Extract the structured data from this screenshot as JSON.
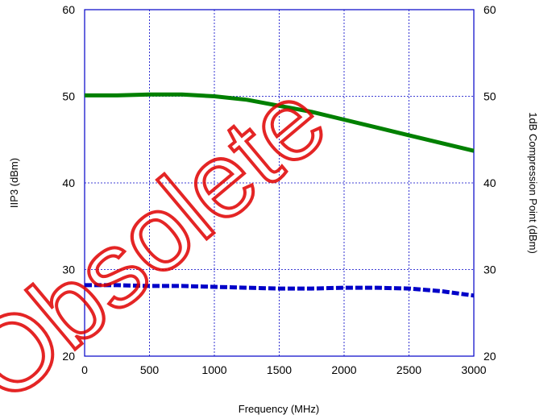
{
  "chart_data": {
    "type": "line",
    "title": "",
    "xlabel": "Frequency (MHz)",
    "ylabel": "IIP3 (dBm)",
    "y2label": "1dB Compression Point (dBm)",
    "xlim": [
      0,
      3000
    ],
    "ylim": [
      20,
      60
    ],
    "y2lim": [
      20,
      60
    ],
    "xticks": [
      0,
      500,
      1000,
      1500,
      2000,
      2500,
      3000
    ],
    "yticks": [
      20,
      30,
      40,
      50,
      60
    ],
    "y2ticks": [
      20,
      30,
      40,
      50,
      60
    ],
    "grid": true,
    "series": [
      {
        "axis": "left",
        "color": "#008000",
        "style": "solid",
        "x": [
          0,
          250,
          500,
          750,
          1000,
          1250,
          1500,
          1750,
          2000,
          2250,
          2500,
          2750,
          3000
        ],
        "y": [
          50.1,
          50.1,
          50.2,
          50.2,
          50.0,
          49.6,
          48.9,
          48.2,
          47.3,
          46.4,
          45.5,
          44.6,
          43.7
        ]
      },
      {
        "axis": "right",
        "color": "#0000c8",
        "style": "dashed",
        "x": [
          0,
          250,
          500,
          750,
          1000,
          1250,
          1500,
          1750,
          2000,
          2250,
          2500,
          2750,
          3000
        ],
        "y": [
          28.2,
          28.2,
          28.1,
          28.1,
          28.0,
          27.9,
          27.8,
          27.8,
          27.9,
          27.9,
          27.8,
          27.5,
          27.0
        ]
      }
    ]
  },
  "watermark": "Obsolete"
}
